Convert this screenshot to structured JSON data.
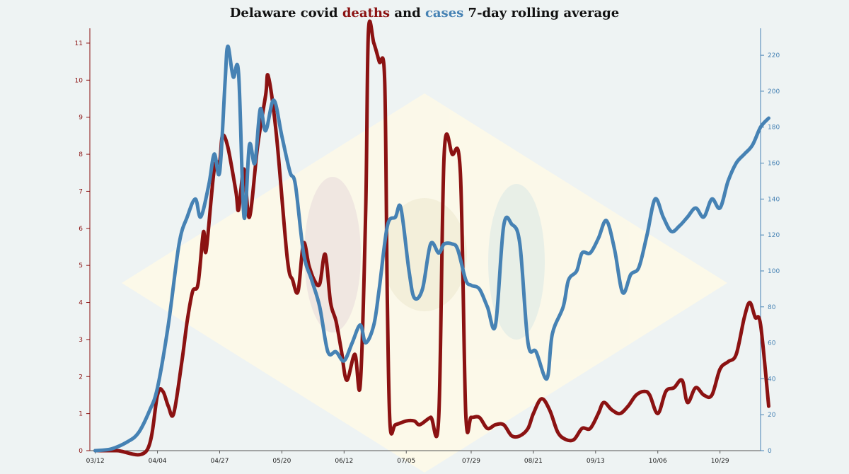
{
  "title": {
    "part1": "Delaware covid ",
    "deaths_word": "deaths",
    "part2": " and ",
    "cases_word": "cases",
    "part3": " 7-day rolling average"
  },
  "colors": {
    "deaths": "#8b1212",
    "cases": "#4682b4",
    "background": "#eef3f3",
    "diamond": "#fdf9e8"
  },
  "chart_data": {
    "type": "line",
    "x_ticks": [
      "03/12",
      "04/04",
      "04/27",
      "05/20",
      "06/12",
      "07/05",
      "07/29",
      "08/21",
      "09/13",
      "10/06",
      "10/29"
    ],
    "x_range": [
      "03/12",
      "11/03"
    ],
    "grid": false,
    "legend": "none",
    "series": [
      {
        "name": "deaths",
        "axis": "left",
        "ylim": [
          0,
          11.4
        ],
        "yticks": [
          0,
          1,
          2,
          3,
          4,
          5,
          6,
          7,
          8,
          9,
          10,
          11
        ],
        "points": [
          [
            "03/12",
            0
          ],
          [
            "03/20",
            0
          ],
          [
            "03/31",
            0
          ],
          [
            "04/04",
            1.5
          ],
          [
            "04/06",
            1.6
          ],
          [
            "04/08",
            1.2
          ],
          [
            "04/10",
            1.0
          ],
          [
            "04/13",
            2.4
          ],
          [
            "04/15",
            3.5
          ],
          [
            "04/17",
            4.3
          ],
          [
            "04/19",
            4.5
          ],
          [
            "04/21",
            5.9
          ],
          [
            "04/22",
            5.4
          ],
          [
            "04/25",
            7.6
          ],
          [
            "04/27",
            7.8
          ],
          [
            "04/28",
            8.5
          ],
          [
            "04/30",
            8.2
          ],
          [
            "05/03",
            7.0
          ],
          [
            "05/04",
            6.5
          ],
          [
            "05/06",
            7.6
          ],
          [
            "05/08",
            6.3
          ],
          [
            "05/11",
            8.2
          ],
          [
            "05/14",
            9.6
          ],
          [
            "05/15",
            10.1
          ],
          [
            "05/18",
            8.5
          ],
          [
            "05/22",
            5.2
          ],
          [
            "05/24",
            4.6
          ],
          [
            "05/26",
            4.3
          ],
          [
            "05/28",
            5.6
          ],
          [
            "05/30",
            5.0
          ],
          [
            "06/01",
            4.6
          ],
          [
            "06/03",
            4.5
          ],
          [
            "06/05",
            5.3
          ],
          [
            "06/07",
            4.0
          ],
          [
            "06/09",
            3.5
          ],
          [
            "06/11",
            2.7
          ],
          [
            "06/13",
            1.9
          ],
          [
            "06/16",
            2.6
          ],
          [
            "06/18",
            1.8
          ],
          [
            "06/20",
            6.5
          ],
          [
            "06/21",
            11.3
          ],
          [
            "06/23",
            11.0
          ],
          [
            "06/25",
            10.5
          ],
          [
            "06/27",
            10.0
          ],
          [
            "06/28",
            4.0
          ],
          [
            "06/29",
            0.7
          ],
          [
            "07/01",
            0.7
          ],
          [
            "07/05",
            0.8
          ],
          [
            "07/08",
            0.8
          ],
          [
            "07/10",
            0.7
          ],
          [
            "07/14",
            0.9
          ],
          [
            "07/17",
            0.9
          ],
          [
            "07/19",
            8.0
          ],
          [
            "07/22",
            8.0
          ],
          [
            "07/25",
            7.5
          ],
          [
            "07/27",
            1.0
          ],
          [
            "07/29",
            0.9
          ],
          [
            "08/01",
            0.9
          ],
          [
            "08/04",
            0.6
          ],
          [
            "08/07",
            0.7
          ],
          [
            "08/10",
            0.7
          ],
          [
            "08/13",
            0.4
          ],
          [
            "08/16",
            0.4
          ],
          [
            "08/19",
            0.6
          ],
          [
            "08/21",
            1.0
          ],
          [
            "08/24",
            1.4
          ],
          [
            "08/27",
            1.1
          ],
          [
            "08/30",
            0.5
          ],
          [
            "09/02",
            0.3
          ],
          [
            "09/05",
            0.3
          ],
          [
            "09/08",
            0.6
          ],
          [
            "09/11",
            0.6
          ],
          [
            "09/14",
            1.0
          ],
          [
            "09/16",
            1.3
          ],
          [
            "09/19",
            1.1
          ],
          [
            "09/22",
            1.0
          ],
          [
            "09/25",
            1.2
          ],
          [
            "09/28",
            1.5
          ],
          [
            "10/01",
            1.6
          ],
          [
            "10/03",
            1.5
          ],
          [
            "10/06",
            1.0
          ],
          [
            "10/09",
            1.6
          ],
          [
            "10/12",
            1.7
          ],
          [
            "10/15",
            1.9
          ],
          [
            "10/17",
            1.3
          ],
          [
            "10/20",
            1.7
          ],
          [
            "10/23",
            1.5
          ],
          [
            "10/26",
            1.5
          ],
          [
            "10/29",
            2.2
          ],
          [
            "11/01",
            2.4
          ],
          [
            "11/04",
            2.6
          ],
          [
            "11/07",
            3.6
          ],
          [
            "11/09",
            4.0
          ],
          [
            "11/11",
            3.6
          ],
          [
            "11/13",
            3.4
          ],
          [
            "11/16",
            1.2
          ]
        ]
      },
      {
        "name": "cases",
        "axis": "right",
        "ylim": [
          0,
          235
        ],
        "yticks": [
          0,
          20,
          40,
          60,
          80,
          100,
          120,
          140,
          160,
          180,
          200,
          220
        ],
        "points": [
          [
            "03/12",
            0
          ],
          [
            "03/18",
            1
          ],
          [
            "03/24",
            5
          ],
          [
            "03/28",
            10
          ],
          [
            "04/01",
            22
          ],
          [
            "04/04",
            35
          ],
          [
            "04/08",
            70
          ],
          [
            "04/12",
            115
          ],
          [
            "04/15",
            130
          ],
          [
            "04/18",
            140
          ],
          [
            "04/20",
            130
          ],
          [
            "04/23",
            148
          ],
          [
            "04/25",
            165
          ],
          [
            "04/27",
            155
          ],
          [
            "04/29",
            205
          ],
          [
            "04/30",
            225
          ],
          [
            "05/02",
            208
          ],
          [
            "05/04",
            210
          ],
          [
            "05/06",
            130
          ],
          [
            "05/08",
            170
          ],
          [
            "05/10",
            160
          ],
          [
            "05/12",
            190
          ],
          [
            "05/14",
            178
          ],
          [
            "05/17",
            195
          ],
          [
            "05/20",
            175
          ],
          [
            "05/23",
            155
          ],
          [
            "05/25",
            148
          ],
          [
            "05/28",
            110
          ],
          [
            "05/31",
            95
          ],
          [
            "06/03",
            80
          ],
          [
            "06/06",
            55
          ],
          [
            "06/09",
            55
          ],
          [
            "06/12",
            50
          ],
          [
            "06/15",
            60
          ],
          [
            "06/18",
            70
          ],
          [
            "06/20",
            60
          ],
          [
            "06/23",
            70
          ],
          [
            "06/25",
            90
          ],
          [
            "06/28",
            125
          ],
          [
            "07/01",
            130
          ],
          [
            "07/03",
            135
          ],
          [
            "07/06",
            100
          ],
          [
            "07/08",
            85
          ],
          [
            "07/11",
            90
          ],
          [
            "07/14",
            115
          ],
          [
            "07/17",
            110
          ],
          [
            "07/19",
            115
          ],
          [
            "07/22",
            115
          ],
          [
            "07/24",
            112
          ],
          [
            "07/27",
            95
          ],
          [
            "07/29",
            92
          ],
          [
            "08/01",
            90
          ],
          [
            "08/04",
            80
          ],
          [
            "08/07",
            70
          ],
          [
            "08/10",
            125
          ],
          [
            "08/13",
            126
          ],
          [
            "08/16",
            115
          ],
          [
            "08/19",
            60
          ],
          [
            "08/22",
            55
          ],
          [
            "08/26",
            40
          ],
          [
            "08/28",
            65
          ],
          [
            "09/01",
            80
          ],
          [
            "09/03",
            95
          ],
          [
            "09/06",
            100
          ],
          [
            "09/08",
            110
          ],
          [
            "09/11",
            110
          ],
          [
            "09/14",
            118
          ],
          [
            "09/17",
            128
          ],
          [
            "09/20",
            112
          ],
          [
            "09/23",
            88
          ],
          [
            "09/26",
            98
          ],
          [
            "09/29",
            102
          ],
          [
            "10/02",
            120
          ],
          [
            "10/05",
            140
          ],
          [
            "10/08",
            130
          ],
          [
            "10/11",
            122
          ],
          [
            "10/14",
            125
          ],
          [
            "10/17",
            130
          ],
          [
            "10/20",
            135
          ],
          [
            "10/23",
            130
          ],
          [
            "10/26",
            140
          ],
          [
            "10/29",
            135
          ],
          [
            "11/01",
            150
          ],
          [
            "11/04",
            160
          ],
          [
            "11/07",
            165
          ],
          [
            "11/10",
            170
          ],
          [
            "11/13",
            180
          ],
          [
            "11/16",
            185
          ]
        ]
      }
    ]
  }
}
